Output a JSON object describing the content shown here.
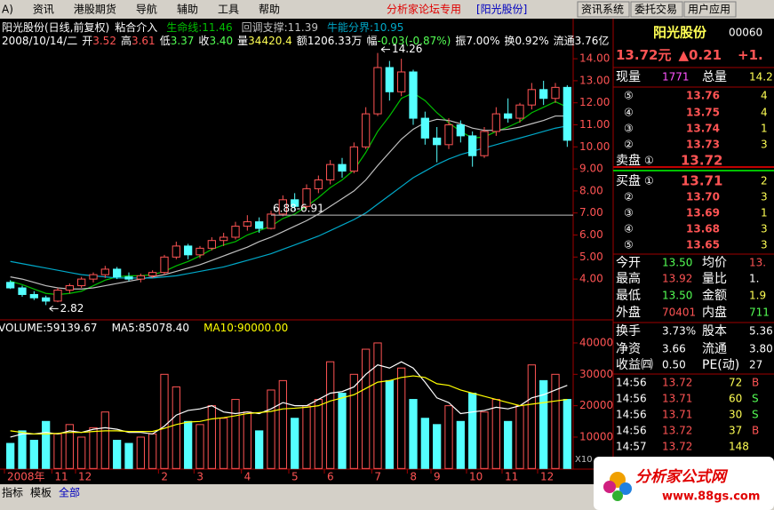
{
  "menu": {
    "items": [
      "A)",
      "资讯",
      "港股期货",
      "导航",
      "辅助",
      "工具",
      "帮助"
    ],
    "forum": "分析家论坛专用",
    "stock": "[阳光股份]",
    "buttons": [
      "资讯系统",
      "委托交易",
      "用户应用"
    ]
  },
  "header": {
    "title": "阳光股份(日线,前复权)",
    "indicator": "粘合介入",
    "date": "2008/10/14/二",
    "info": [
      {
        "label": "开",
        "value": "3.52",
        "color": "#ff5454"
      },
      {
        "label": "高",
        "value": "3.61",
        "color": "#ff5454"
      },
      {
        "label": "低",
        "value": "3.37",
        "color": "#54ff54"
      },
      {
        "label": "收",
        "value": "3.40",
        "color": "#54ff54"
      },
      {
        "label": "量",
        "value": "34420.4",
        "color": "#ffff54"
      },
      {
        "label": "额",
        "value": "1206.33万",
        "color": "#ffffff"
      },
      {
        "label": "幅",
        "value": "-0.03(-0.87%)",
        "color": "#54ff54"
      },
      {
        "label": "振",
        "value": "7.00%",
        "color": "#ffffff"
      },
      {
        "label": "换",
        "value": "0.92%",
        "color": "#ffffff"
      },
      {
        "label": "流通",
        "value": "3.76亿",
        "color": "#ffffff"
      }
    ]
  },
  "chart_data": [
    {
      "type": "candlestick",
      "ylim": [
        2.23,
        14.73
      ],
      "yticks": [
        {
          "value": 4,
          "label": "4.00"
        },
        {
          "value": 5,
          "label": "5.00"
        },
        {
          "value": 6,
          "label": "6.00"
        },
        {
          "value": 7,
          "label": "7.00"
        },
        {
          "value": 8,
          "label": "8.00"
        },
        {
          "value": 9,
          "label": "9.00"
        },
        {
          "value": 10,
          "label": "10.00"
        },
        {
          "value": 11,
          "label": "11.00"
        },
        {
          "value": 12,
          "label": "12.00"
        },
        {
          "value": 13,
          "label": "13.00"
        },
        {
          "value": 14,
          "label": "14.00"
        }
      ],
      "up_color": "#ff5454",
      "down_color": "#54ffff",
      "open": [
        3.85,
        3.6,
        3.3,
        3.15,
        3.0,
        3.5,
        3.7,
        4.0,
        4.2,
        4.45,
        4.1,
        4.0,
        4.15,
        4.3,
        5.0,
        5.5,
        5.1,
        5.4,
        5.75,
        5.9,
        6.4,
        6.6,
        6.3,
        6.95,
        7.6,
        7.3,
        8.1,
        8.5,
        9.2,
        8.9,
        10.0,
        11.5,
        13.6,
        12.5,
        13.4,
        11.3,
        10.4,
        10.1,
        11.0,
        10.5,
        9.6,
        10.7,
        11.5,
        11.3,
        11.9,
        12.6,
        12.2,
        12.7
      ],
      "high": [
        3.95,
        3.7,
        3.45,
        3.25,
        3.6,
        3.8,
        4.1,
        4.3,
        4.6,
        4.55,
        4.3,
        4.25,
        4.4,
        5.1,
        5.7,
        5.6,
        5.5,
        5.9,
        6.1,
        6.6,
        6.9,
        6.8,
        7.1,
        7.8,
        7.9,
        8.3,
        8.7,
        9.4,
        9.5,
        10.2,
        11.8,
        14.26,
        13.9,
        14.0,
        13.5,
        11.6,
        10.9,
        11.3,
        11.2,
        10.7,
        10.9,
        11.8,
        12.2,
        12.0,
        12.9,
        13.0,
        12.9,
        12.8
      ],
      "low": [
        3.55,
        3.2,
        3.05,
        2.82,
        2.95,
        3.35,
        3.6,
        3.85,
        4.05,
        4.0,
        3.9,
        3.85,
        4.05,
        4.2,
        4.9,
        4.9,
        4.95,
        5.3,
        5.5,
        5.8,
        6.2,
        6.1,
        6.25,
        6.85,
        7.1,
        7.2,
        7.9,
        8.3,
        8.6,
        8.8,
        9.9,
        11.4,
        12.1,
        12.3,
        11.0,
        10.1,
        9.3,
        9.9,
        10.2,
        9.1,
        9.5,
        10.5,
        11.1,
        11.1,
        11.7,
        11.9,
        12.0,
        10.0
      ],
      "close": [
        3.6,
        3.3,
        3.15,
        3.0,
        3.5,
        3.7,
        4.0,
        4.2,
        4.45,
        4.1,
        4.0,
        4.15,
        4.3,
        5.0,
        5.5,
        5.1,
        5.4,
        5.75,
        5.9,
        6.4,
        6.6,
        6.3,
        6.95,
        7.6,
        7.3,
        8.1,
        8.5,
        9.2,
        8.9,
        10.0,
        11.5,
        13.6,
        12.5,
        13.4,
        11.3,
        10.4,
        10.1,
        11.0,
        10.5,
        9.6,
        10.7,
        11.5,
        11.3,
        11.9,
        12.6,
        12.2,
        12.7,
        10.3
      ],
      "series": [
        {
          "name": "生命线:",
          "readout": "11.46",
          "color": "#00c000",
          "values": [
            3.9,
            3.75,
            3.55,
            3.35,
            3.3,
            3.35,
            3.45,
            3.7,
            3.95,
            4.1,
            4.15,
            4.15,
            4.2,
            4.35,
            4.6,
            4.8,
            5.05,
            5.35,
            5.55,
            5.7,
            6.0,
            6.2,
            6.4,
            6.75,
            6.95,
            7.3,
            7.7,
            8.15,
            8.5,
            8.95,
            9.75,
            10.7,
            11.4,
            12.2,
            12.45,
            12.1,
            11.55,
            11.1,
            10.7,
            10.4,
            10.45,
            10.7,
            10.9,
            11.15,
            11.55,
            11.8,
            12.05,
            11.8
          ]
        },
        {
          "name": "回调支撑:",
          "readout": "11.39",
          "color": "#c0c0c0",
          "values": [
            4.1,
            4.0,
            3.85,
            3.7,
            3.6,
            3.55,
            3.55,
            3.6,
            3.7,
            3.8,
            3.9,
            4.0,
            4.1,
            4.2,
            4.35,
            4.5,
            4.65,
            4.85,
            5.05,
            5.25,
            5.45,
            5.7,
            5.9,
            6.15,
            6.4,
            6.65,
            6.95,
            7.3,
            7.65,
            8.0,
            8.5,
            9.15,
            9.75,
            10.35,
            10.8,
            11.1,
            11.25,
            11.2,
            11.05,
            10.85,
            10.75,
            10.75,
            10.8,
            10.9,
            11.05,
            11.2,
            11.4,
            11.4
          ]
        },
        {
          "name": "牛能分界:",
          "readout": "10.95",
          "color": "#00a8c8",
          "values": [
            4.8,
            4.7,
            4.6,
            4.5,
            4.4,
            4.3,
            4.2,
            4.15,
            4.1,
            4.05,
            4.05,
            4.05,
            4.05,
            4.1,
            4.15,
            4.25,
            4.35,
            4.45,
            4.55,
            4.7,
            4.85,
            5.0,
            5.15,
            5.35,
            5.55,
            5.75,
            5.95,
            6.2,
            6.45,
            6.7,
            7.0,
            7.4,
            7.8,
            8.2,
            8.6,
            8.9,
            9.2,
            9.45,
            9.65,
            9.8,
            9.95,
            10.1,
            10.25,
            10.4,
            10.55,
            10.7,
            10.85,
            10.95
          ]
        }
      ],
      "annotations": [
        {
          "label": "14.26",
          "index": 31
        },
        {
          "label": "2.82",
          "index": 3
        }
      ],
      "level": {
        "label": "6.88-6.91",
        "value": 6.9,
        "start": 22
      }
    },
    {
      "type": "bar",
      "name": "VOLUME:",
      "readout": "59139.67",
      "ylim": [
        0,
        42000
      ],
      "yticks": [
        10000,
        20000,
        30000,
        40000
      ],
      "unit_label": "X10",
      "values": [
        8000,
        12000,
        9000,
        15000,
        11000,
        14000,
        10000,
        13000,
        18000,
        9000,
        8000,
        10000,
        11000,
        30000,
        26000,
        15000,
        14000,
        20000,
        16000,
        22000,
        18000,
        12000,
        25000,
        28000,
        16000,
        20000,
        22000,
        34000,
        24000,
        30000,
        38000,
        40000,
        28000,
        32000,
        22000,
        16000,
        14000,
        20000,
        15000,
        24000,
        18000,
        22000,
        15000,
        20000,
        33000,
        28000,
        30000,
        22000
      ],
      "series": [
        {
          "name": "MA5:",
          "readout": "85078.40",
          "color": "#ffffff",
          "values": [
            10000,
            11000,
            11000,
            11500,
            11000,
            12000,
            11500,
            12500,
            13000,
            12500,
            11500,
            11500,
            11000,
            13500,
            17000,
            18500,
            19000,
            20000,
            18000,
            17500,
            18000,
            17500,
            19000,
            21000,
            20000,
            20000,
            22000,
            24000,
            24500,
            26000,
            30000,
            33000,
            32000,
            34000,
            32000,
            27500,
            22500,
            21000,
            17500,
            18000,
            18500,
            19500,
            19000,
            20000,
            22500,
            23500,
            25000,
            26500
          ]
        },
        {
          "name": "MA10:",
          "readout": "90000.00",
          "color": "#ffff00",
          "values": [
            12000,
            11500,
            11000,
            11000,
            11200,
            11500,
            11500,
            11800,
            12000,
            12000,
            11800,
            11800,
            11800,
            12800,
            14000,
            14800,
            15000,
            15800,
            16200,
            16800,
            17500,
            17800,
            18200,
            19000,
            19200,
            19500,
            20000,
            21500,
            22500,
            23500,
            25500,
            27500,
            28000,
            29000,
            29500,
            29000,
            27000,
            26500,
            25000,
            24000,
            23000,
            22000,
            21000,
            20000,
            20500,
            21000,
            21500,
            22000
          ]
        }
      ],
      "xticks": [
        {
          "value": 0,
          "label": "2008年"
        },
        {
          "value": 4,
          "label": "11"
        },
        {
          "value": 6,
          "label": "12"
        },
        {
          "value": 13,
          "label": "2"
        },
        {
          "value": 16,
          "label": "3"
        },
        {
          "value": 20,
          "label": "4"
        },
        {
          "value": 24,
          "label": "5"
        },
        {
          "value": 27,
          "label": "6"
        },
        {
          "value": 31,
          "label": "7"
        },
        {
          "value": 34,
          "label": "8"
        },
        {
          "value": 36,
          "label": "9"
        },
        {
          "value": 39,
          "label": "10"
        },
        {
          "value": 42,
          "label": "11"
        },
        {
          "value": 45,
          "label": "12"
        }
      ]
    }
  ],
  "quote": {
    "name": "阳光股份",
    "code": "00060",
    "price": "13.72",
    "unit": "元",
    "change": "▲0.21",
    "pct": "+1.",
    "row1": [
      "现量",
      "1771",
      "总量",
      "14.2"
    ],
    "sell": [
      [
        "⑤",
        "13.76",
        "4"
      ],
      [
        "④",
        "13.75",
        "4"
      ],
      [
        "③",
        "13.74",
        "1"
      ],
      [
        "②",
        "13.73",
        "3"
      ]
    ],
    "ask1": [
      "卖盘",
      "①",
      "13.72"
    ],
    "bid1": [
      "买盘",
      "①",
      "13.71",
      "2"
    ],
    "buy": [
      [
        "②",
        "13.70",
        "3"
      ],
      [
        "③",
        "13.69",
        "1"
      ],
      [
        "④",
        "13.68",
        "3"
      ],
      [
        "⑤",
        "13.65",
        "3"
      ]
    ],
    "stats": [
      [
        "今开",
        "13.50",
        "均价",
        "13."
      ],
      [
        "最高",
        "13.92",
        "量比",
        "1."
      ],
      [
        "最低",
        "13.50",
        "金额",
        "1.9"
      ],
      [
        "外盘",
        "70401",
        "内盘",
        "711"
      ]
    ],
    "stats2": [
      [
        "换手",
        "3.73%",
        "股本",
        "5.36"
      ],
      [
        "净资",
        "3.66",
        "流通",
        "3.80"
      ],
      [
        "收益㈣",
        "0.50",
        "PE(动)",
        "27"
      ]
    ],
    "trades": [
      [
        "14:56",
        "13.72",
        "72",
        "B"
      ],
      [
        "14:56",
        "13.71",
        "60",
        "S"
      ],
      [
        "14:56",
        "13.71",
        "30",
        "S"
      ],
      [
        "14:56",
        "13.72",
        "37",
        "B"
      ],
      [
        "14:57",
        "13.72",
        "148",
        ""
      ]
    ]
  },
  "tabs": [
    "指标",
    "模板",
    "全部"
  ],
  "logo": {
    "name": "分析家公式网",
    "url": "www.88gs.com"
  }
}
